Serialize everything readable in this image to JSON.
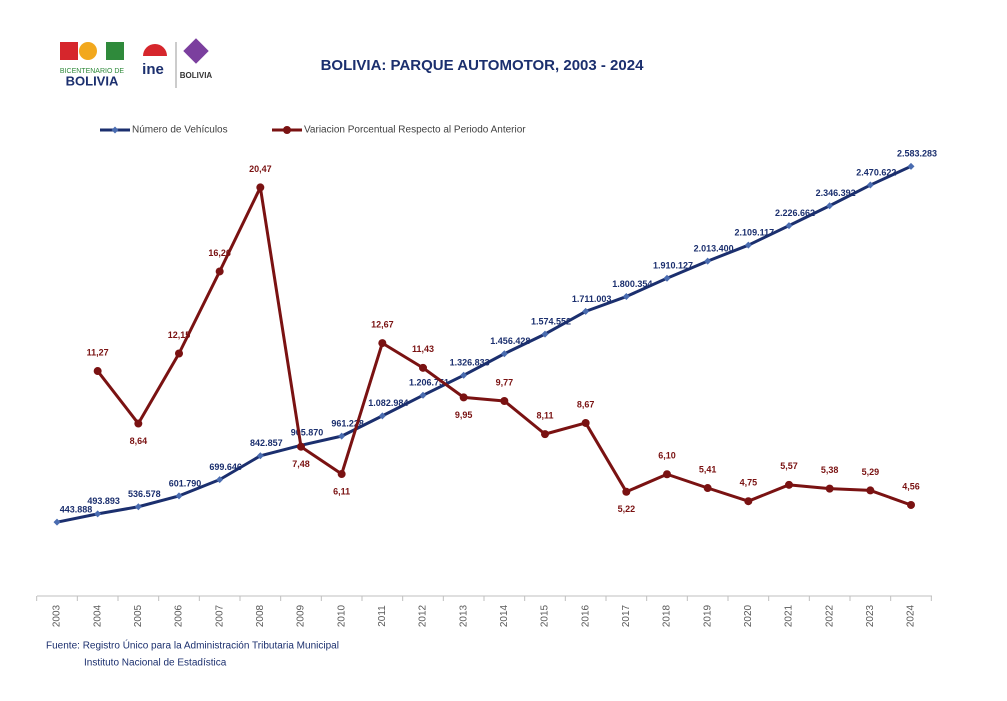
{
  "chart_data": {
    "type": "line",
    "title": "BOLIVIA: PARQUE AUTOMOTOR, 2003 - 2024",
    "logo_texts": [
      "BICENTENARIO DE",
      "BOLIVIA",
      "ine",
      "BOLIVIA"
    ],
    "categories": [
      "2003",
      "2004",
      "2005",
      "2006",
      "2007",
      "2008",
      "2009",
      "2010",
      "2011",
      "2012",
      "2013",
      "2014",
      "2015",
      "2016",
      "2017",
      "2018",
      "2019",
      "2020",
      "2021",
      "2022",
      "2023",
      "2024"
    ],
    "series": [
      {
        "name": "Número de Vehículos",
        "color": "#1b2f6e",
        "marker": "diamond",
        "values": [
          443888,
          493893,
          536578,
          601790,
          699646,
          842857,
          905870,
          961228,
          1082984,
          1206751,
          1326833,
          1456428,
          1574552,
          1711003,
          1800354,
          1910127,
          2013400,
          2109117,
          2226662,
          2346392,
          2470622,
          2583283
        ],
        "value_labels": [
          "443.888",
          "493.893",
          "536.578",
          "601.790",
          "699.646",
          "842.857",
          "905.870",
          "961.228",
          "1.082.984",
          "1.206.751",
          "1.326.833",
          "1.456.428",
          "1.574.552",
          "1.711.003",
          "1.800.354",
          "1.910.127",
          "2.013.400",
          "2.109.117",
          "2.226.662",
          "2.346.392",
          "2.470.622",
          "2.583.283"
        ]
      },
      {
        "name": "Variacion Porcentual Respecto al Periodo Anterior",
        "color": "#7a1212",
        "marker": "circle",
        "axis": "y2",
        "values": [
          null,
          11.27,
          8.64,
          12.15,
          16.26,
          20.47,
          7.48,
          6.11,
          12.67,
          11.43,
          9.95,
          9.77,
          8.11,
          8.67,
          5.22,
          6.1,
          5.41,
          4.75,
          5.57,
          5.38,
          5.29,
          4.56
        ],
        "value_labels": [
          null,
          "11,27",
          "8,64",
          "12,15",
          "16,26",
          "20,47",
          "7,48",
          "6,11",
          "12,67",
          "11,43",
          "9,95",
          "9,77",
          "8,11",
          "8,67",
          "5,22",
          "6,10",
          "5,41",
          "4,75",
          "5,57",
          "5,38",
          "5,29",
          "4,56"
        ]
      }
    ],
    "ylim": [
      0,
      3000000
    ],
    "y2lim": [
      0,
      25
    ],
    "grid": false,
    "legend": "top-left",
    "source": [
      "Fuente: Registro Único para la Administración Tributaria Municipal",
      "Instituto Nacional de Estadística"
    ]
  }
}
